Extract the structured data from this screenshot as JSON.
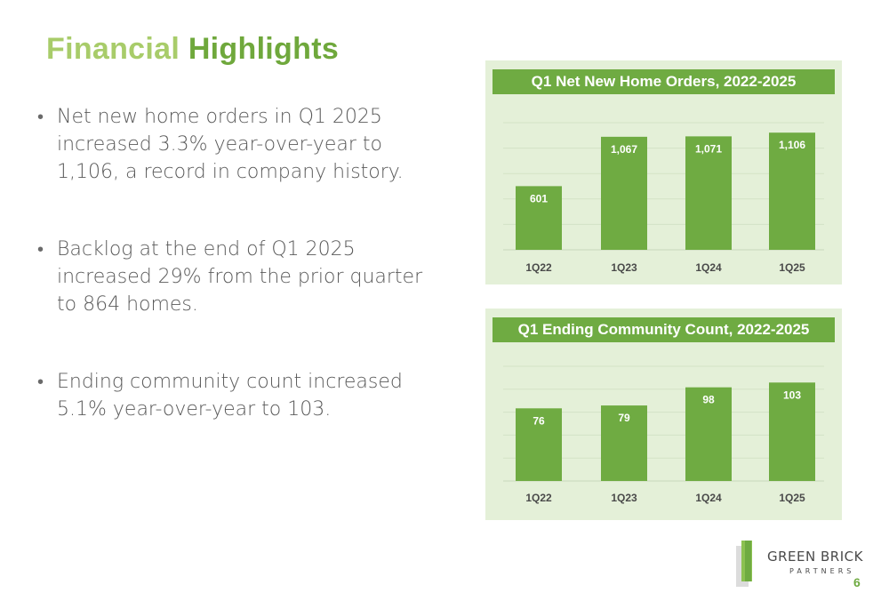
{
  "slide": {
    "title_part1": "Financial",
    "title_part2": "Highlights",
    "page_number": "6"
  },
  "bullets": [
    "Net new home orders in Q1 2025 increased 3.3% year-over-year to 1,106, a record in company history.",
    "Backlog at the end of Q1 2025 increased 29% from the prior quarter to 864 homes.",
    "Ending community count increased 5.1% year-over-year to 103."
  ],
  "logo": {
    "line1": "GREEN BRICK",
    "line2": "PARTNERS",
    "icon": "green-brick-logo-icon"
  },
  "colors": {
    "bar": "#6fab42",
    "panel_bg": "#e4f0d8",
    "title_light": "#a8cc6a",
    "title_dark": "#6fa83c"
  },
  "chart_data": [
    {
      "type": "bar",
      "title": "Q1 Net New Home Orders, 2022-2025",
      "categories": [
        "1Q22",
        "1Q23",
        "1Q24",
        "1Q25"
      ],
      "values": [
        601,
        1067,
        1071,
        1106
      ],
      "value_labels": [
        "601",
        "1,067",
        "1,071",
        "1,106"
      ],
      "ylim": [
        0,
        1200
      ],
      "grid": true,
      "legend": "none"
    },
    {
      "type": "bar",
      "title": "Q1 Ending Community Count, 2022-2025",
      "categories": [
        "1Q22",
        "1Q23",
        "1Q24",
        "1Q25"
      ],
      "values": [
        76,
        79,
        98,
        103
      ],
      "value_labels": [
        "76",
        "79",
        "98",
        "103"
      ],
      "ylim": [
        0,
        120
      ],
      "grid": true,
      "legend": "none"
    }
  ]
}
